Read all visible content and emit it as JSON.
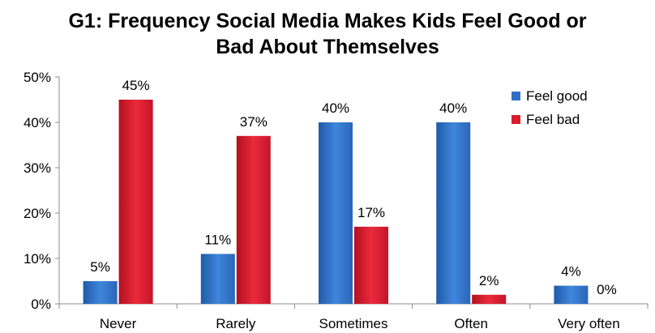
{
  "chart_data": {
    "type": "bar",
    "title": [
      "G1:  Frequency Social Media Makes Kids Feel Good or",
      "Bad About Themselves"
    ],
    "categories": [
      "Never",
      "Rarely",
      "Sometimes",
      "Often",
      "Very often"
    ],
    "series": [
      {
        "name": "Feel good",
        "values": [
          5,
          11,
          40,
          40,
          4
        ],
        "labels": [
          "5%",
          "11%",
          "40%",
          "40%",
          "4%"
        ],
        "color": "#2e6fc4"
      },
      {
        "name": "Feel bad",
        "values": [
          45,
          37,
          17,
          2,
          0
        ],
        "labels": [
          "45%",
          "37%",
          "17%",
          "2%",
          "0%"
        ],
        "color": "#d81c2e"
      }
    ],
    "ylim": [
      0,
      50
    ],
    "yticks": [
      "0%",
      "10%",
      "20%",
      "30%",
      "40%",
      "50%"
    ],
    "xlabel": "",
    "ylabel": "",
    "grid": false,
    "legend": "top-right"
  }
}
